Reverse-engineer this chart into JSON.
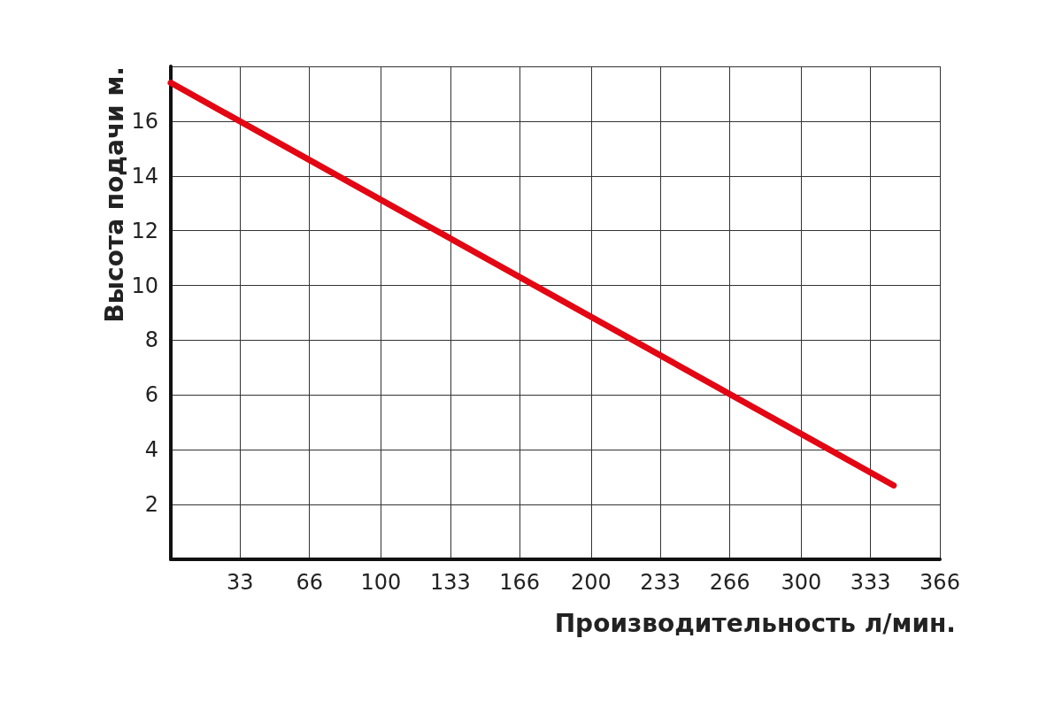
{
  "chart_data": {
    "type": "line",
    "xlabel": "Производительность л/мин.",
    "ylabel": "Высота подачи м.",
    "x": [
      0,
      344
    ],
    "series": [
      {
        "color": "#e30613",
        "values": [
          17.4,
          2.7
        ]
      }
    ],
    "xlim": [
      0,
      366
    ],
    "xticks": [
      33,
      66,
      100,
      133,
      166,
      200,
      233,
      266,
      300,
      333,
      366
    ],
    "ylim": [
      0,
      18
    ],
    "yticks": [
      2,
      4,
      6,
      8,
      10,
      12,
      14,
      16,
      {
        "value": 18,
        "label": null
      }
    ],
    "grid": true,
    "marker": "none",
    "line_style": "solid"
  }
}
